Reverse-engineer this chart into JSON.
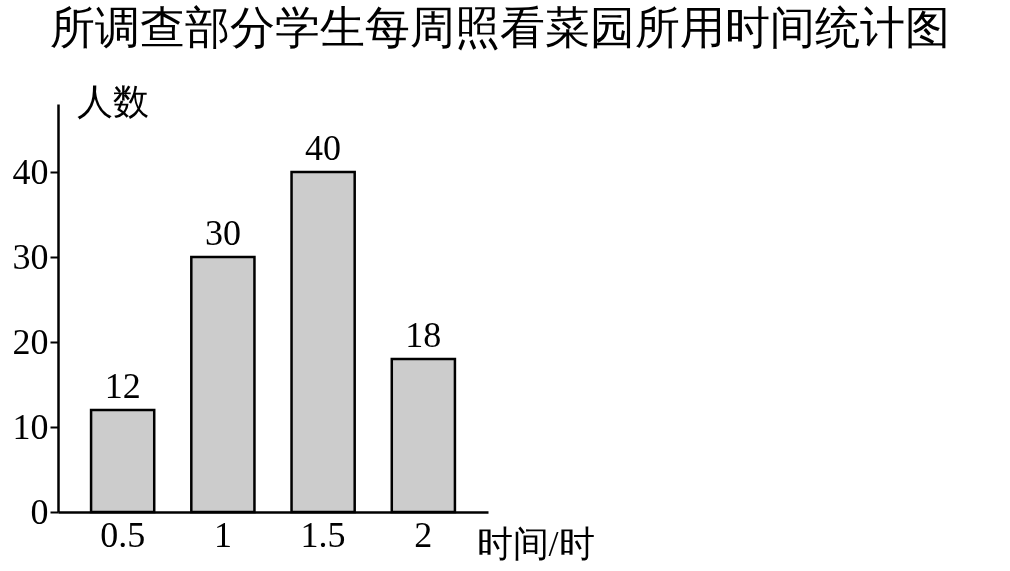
{
  "chart_data": {
    "type": "bar",
    "title": "所调查部分学生每周照看菜园所用时间统计图",
    "xlabel": "时间/时",
    "ylabel": "人数",
    "categories": [
      "0.5",
      "1",
      "1.5",
      "2"
    ],
    "values": [
      12,
      30,
      40,
      18
    ],
    "color": "#cccccc",
    "ylim": [
      0,
      48
    ],
    "yticks": [
      0,
      10,
      20,
      30,
      40
    ],
    "data_labels": true
  }
}
